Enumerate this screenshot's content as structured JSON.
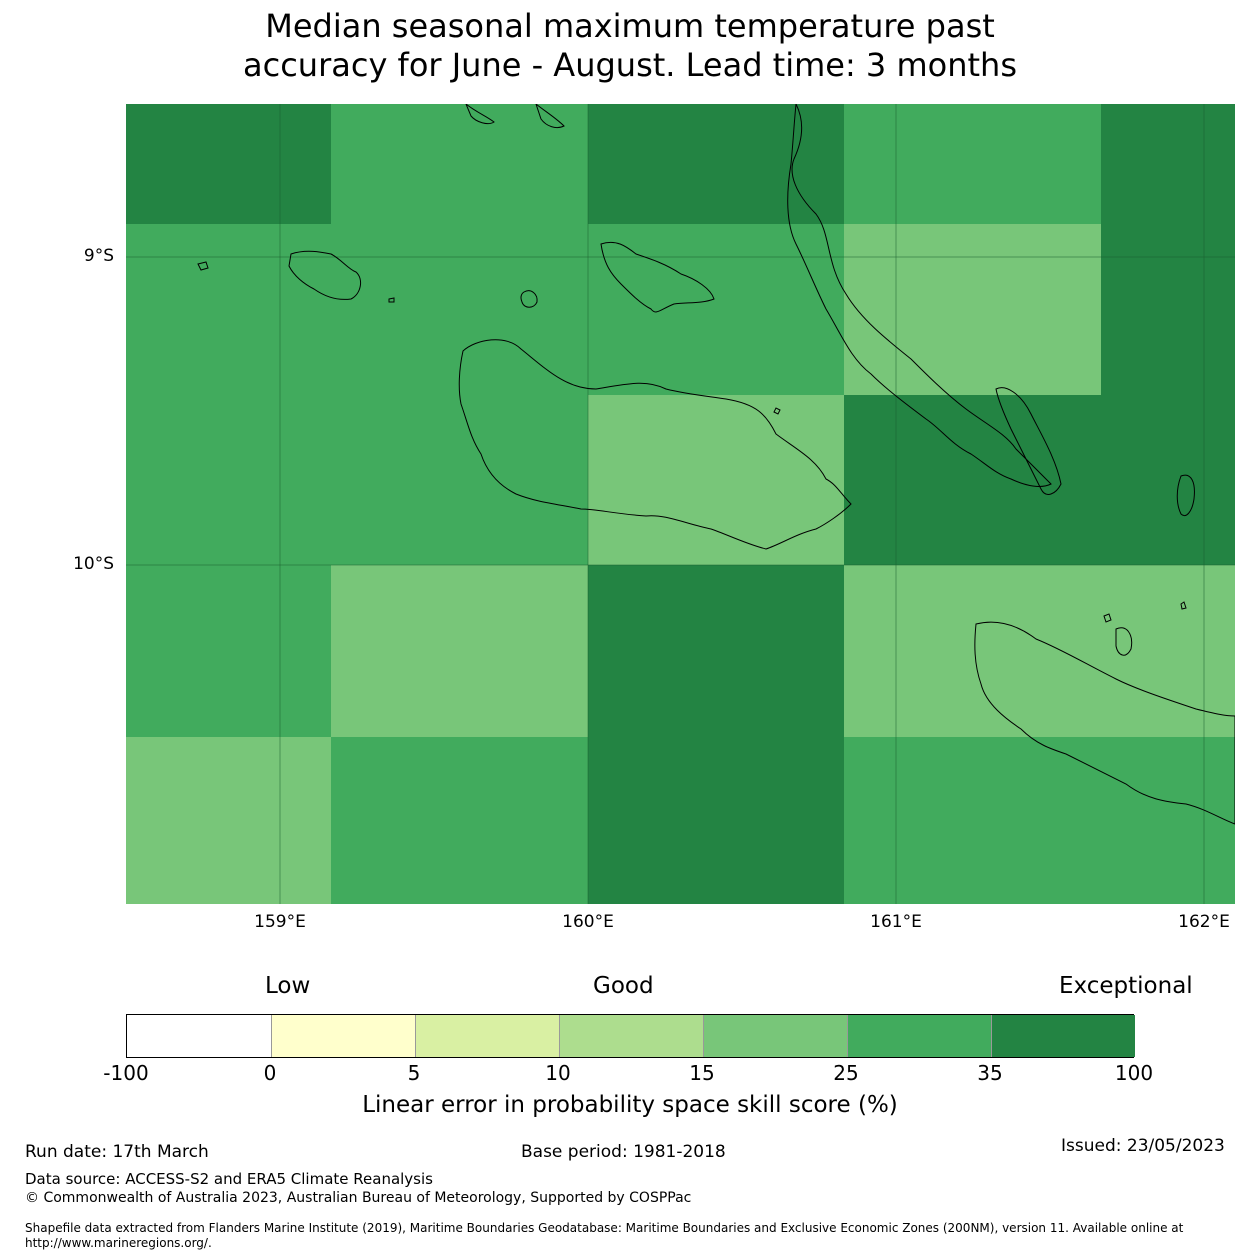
{
  "title": {
    "line1": "Median seasonal maximum temperature past",
    "line2": "accuracy for June - August. Lead time: 3 months"
  },
  "map": {
    "lat_labels": [
      "9°S",
      "10°S"
    ],
    "lon_labels": [
      "159°E",
      "160°E",
      "161°E",
      "162°E"
    ],
    "category_colors": {
      "25-35": "#41ab5d",
      "35-100": "#238443",
      "15-25": "#78c679"
    },
    "grid": [
      [
        "35-100",
        "25-35",
        "35-100",
        "25-35",
        "35-100"
      ],
      [
        "25-35",
        "25-35",
        "25-35",
        "15-25",
        "35-100"
      ],
      [
        "25-35",
        "25-35",
        "15-25",
        "35-100",
        "35-100"
      ],
      [
        "25-35",
        "15-25",
        "35-100",
        "15-25",
        "15-25"
      ],
      [
        "15-25",
        "25-35",
        "35-100",
        "25-35",
        "25-35"
      ]
    ]
  },
  "colorbar": {
    "headings": [
      "Low",
      "Good",
      "Exceptional"
    ],
    "ticks": [
      "-100",
      "0",
      "5",
      "10",
      "15",
      "25",
      "35",
      "100"
    ],
    "colors": [
      "#ffffff",
      "#ffffcc",
      "#d9f0a3",
      "#addd8e",
      "#78c679",
      "#41ab5d",
      "#238443"
    ],
    "label": "Linear error in probability space skill score (%)"
  },
  "footer": {
    "run_date": "Run date: 17th March",
    "base_period": "Base period: 1981-2018",
    "issued": "Issued: 23/05/2023",
    "data_source": "Data source: ACCESS-S2 and ERA5 Climate Reanalysis",
    "copyright": "© Commonwealth of Australia 2023, Australian Bureau of Meteorology, Supported by COSPPac",
    "shapefile_line1": "Shapefile data extracted from Flanders Marine Institute (2019), Maritime Boundaries Geodatabase: Maritime Boundaries and Exclusive Economic Zones (200NM), version 11. Available online at",
    "shapefile_line2": "http://www.marineregions.org/."
  }
}
